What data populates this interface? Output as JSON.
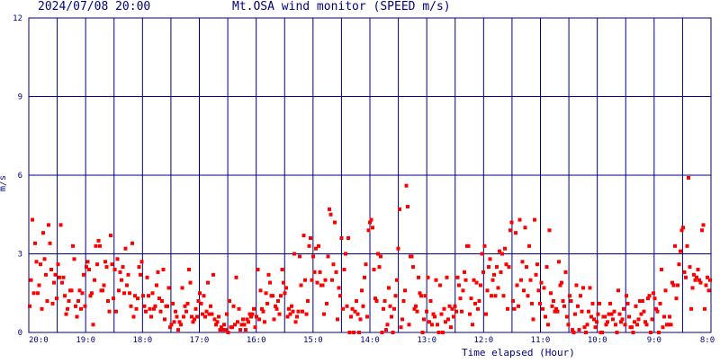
{
  "header": {
    "timestamp": "2024/07/08 20:00",
    "title": "Mt.OSA wind monitor (SPEED m/s)"
  },
  "chart_data": {
    "type": "scatter",
    "title": "Mt.OSA wind monitor (SPEED m/s)",
    "xlabel": "Time elapsed (Hour)",
    "ylabel": "m/s",
    "ylim": [
      0,
      12
    ],
    "yticks": [
      0,
      3,
      6,
      9,
      12
    ],
    "x_direction": "reversed",
    "x_tick_labels": [
      "20:0",
      "19:0",
      "18:0",
      "17:0",
      "16:0",
      "15:0",
      "14:0",
      "13:0",
      "12:0",
      "11:0",
      "10:0",
      "9:0",
      "8:0"
    ],
    "grid": true,
    "series": [
      {
        "color": "#ff0000",
        "values": [
          1.0,
          2.0,
          4.3,
          1.5,
          3.4,
          2.7,
          1.5,
          1.8,
          2.6,
          0.9,
          3.8,
          2.8,
          2.2,
          1.2,
          4.1,
          3.4,
          2.4,
          1.1,
          1.9,
          2.2,
          1.3,
          2.6,
          2.1,
          4.1,
          1.9,
          2.1,
          1.4,
          0.7,
          0.9,
          1.2,
          1.6,
          1.6,
          3.3,
          2.8,
          1.0,
          0.6,
          1.2,
          1.6,
          0.9,
          1.5,
          2.2,
          1.0,
          2.5,
          2.7,
          2.4,
          1.4,
          1.5,
          0.3,
          2.0,
          3.3,
          2.6,
          3.5,
          3.3,
          1.6,
          1.6,
          1.8,
          2.7,
          2.5,
          1.2,
          0.8,
          3.7,
          2.6,
          1.3,
          2.4,
          0.8,
          2.8,
          1.6,
          2.3,
          2.0,
          2.5,
          1.5,
          3.2,
          1.8,
          2.2,
          1.5,
          1.0,
          3.4,
          0.6,
          1.4,
          0.9,
          1.3,
          2.5,
          2.2,
          2.7,
          1.4,
          1.0,
          0.8,
          2.1,
          1.4,
          0.9,
          0.6,
          1.5,
          0.9,
          1.0,
          1.8,
          2.3,
          1.3,
          0.8,
          1.2,
          2.4,
          0.5,
          1.0,
          1.0,
          1.7,
          0.2,
          0.3,
          1.1,
          0.4,
          0.8,
          0.6,
          0.1,
          0.4,
          0.3,
          1.7,
          0.6,
          1.0,
          0.8,
          1.1,
          2.4,
          1.9,
          0.6,
          0.4,
          0.5,
          0.9,
          0.6,
          1.2,
          1.5,
          1.1,
          0.7,
          1.4,
          0.6,
          0.8,
          1.9,
          0.7,
          1.0,
          0.7,
          2.2,
          0.5,
          0.3,
          0.4,
          0.6,
          0.1,
          0.2,
          0.1,
          0.3,
          0.1,
          0.7,
          0.0,
          1.2,
          0.2,
          0.2,
          1.0,
          0.3,
          2.1,
          0.4,
          0.9,
          0.1,
          0.3,
          0.5,
          0.3,
          0.1,
          0.5,
          0.4,
          0.7,
          0.6,
          0.7,
          0.9,
          0.2,
          0.6,
          2.4,
          0.5,
          1.6,
          0.9,
          0.8,
          0.4,
          1.5,
          1.1,
          2.2,
          1.9,
          1.4,
          1.4,
          0.5,
          1.0,
          0.9,
          1.2,
          0.7,
          1.4,
          2.4,
          1.9,
          1.5,
          1.7,
          0.6,
          0.9,
          0.7,
          1.0,
          0.8,
          3.0,
          0.4,
          0.6,
          0.8,
          2.9,
          1.8,
          0.8,
          3.7,
          2.0,
          0.7,
          1.2,
          3.3,
          3.6,
          2.0,
          2.9,
          2.3,
          3.2,
          1.9,
          3.3,
          2.3,
          1.8,
          1.8,
          0.7,
          2.0,
          1.1,
          2.9,
          4.7,
          4.5,
          2.0,
          2.6,
          4.2,
          2.3,
          0.5,
          1.7,
          1.4,
          3.6,
          0.9,
          2.4,
          3.0,
          1.0,
          3.6,
          0.0,
          0.6,
          0.9,
          0.0,
          0.8,
          1.2,
          0.7,
          0.0,
          0.5,
          1.6,
          1.0,
          2.1,
          2.6,
          0.6,
          3.9,
          4.2,
          4.3,
          4.0,
          2.4,
          1.3,
          1.2,
          3.0,
          2.5,
          2.9,
          0.0,
          0.9,
          1.2,
          0.1,
          0.3,
          1.7,
          1.0,
          0.6,
          0.0,
          0.9,
          1.4,
          2.0,
          3.2,
          4.7,
          0.2,
          0.5,
          1.2,
          1.6,
          5.6,
          4.8,
          0.3,
          2.9,
          2.9,
          2.5,
          0.9,
          1.0,
          0.8,
          2.1,
          1.5,
          1.4,
          0.0,
          0.5,
          1.4,
          0.8,
          2.1,
          0.4,
          1.2,
          0.3,
          0.7,
          0.6,
          2.0,
          0.3,
          0.0,
          1.8,
          0.7,
          0.0,
          0.9,
          0.4,
          2.1,
          0.5,
          1.0,
          0.2,
          0.9,
          0.6,
          1.0,
          0.8,
          2.1,
          1.8,
          1.3,
          0.8,
          1.6,
          2.3,
          2.0,
          3.3,
          3.3,
          0.7,
          1.3,
          0.3,
          2.0,
          1.1,
          1.9,
          0.9,
          1.2,
          1.8,
          3.0,
          2.3,
          3.3,
          0.7,
          1.6,
          2.5,
          2.8,
          1.4,
          2.0,
          2.2,
          1.4,
          2.5,
          1.7,
          3.1,
          2.3,
          3.0,
          1.4,
          3.2,
          2.6,
          0.9,
          2.5,
          3.9,
          4.2,
          1.2,
          0.9,
          3.8,
          1.8,
          1.0,
          4.3,
          2.0,
          2.7,
          1.6,
          4.0,
          2.5,
          1.4,
          3.3,
          2.0,
          1.1,
          0.5,
          4.3,
          2.2,
          2.6,
          1.6,
          1.1,
          1.9,
          0.9,
          1.7,
          0.6,
          2.5,
          0.3,
          3.9,
          1.5,
          1.0,
          1.2,
          0.8,
          0.9,
          0.8,
          2.7,
          1.8,
          1.9,
          1.2,
          1.0,
          2.3,
          0.6,
          0.3,
          1.4,
          1.2,
          0.1,
          0.0,
          0.7,
          1.8,
          1.0,
          0.1,
          1.4,
          0.8,
          1.7,
          0.2,
          0.0,
          0.3,
          0.8,
          1.7,
          0.6,
          1.1,
          0.5,
          0.2,
          0.4,
          0.7,
          1.1,
          0.0,
          0.0,
          0.6,
          0.6,
          0.3,
          0.4,
          0.7,
          1.1,
          0.7,
          0.5,
          0.8,
          0.3,
          0.0,
          1.6,
          0.7,
          0.4,
          0.5,
          0.9,
          0.3,
          1.4,
          1.1,
          0.6,
          0.2,
          0.2,
          0.0,
          0.4,
          1.0,
          0.3,
          0.5,
          1.2,
          0.7,
          1.2,
          0.8,
          0.4,
          0.3,
          1.3,
          1.4,
          0.0,
          0.5,
          1.5,
          1.3,
          0.9,
          0.8,
          0.0,
          1.1,
          2.4,
          0.2,
          0.6,
          1.6,
          0.3,
          0.3,
          0.6,
          0.3,
          1.9,
          1.8,
          3.3,
          1.3,
          1.8,
          2.6,
          3.1,
          3.9,
          4.0,
          2.3,
          2.1,
          3.3,
          5.9,
          2.5,
          0.9,
          1.7,
          2.2,
          2.0,
          2.1,
          2.4,
          2.0,
          1.9,
          3.9,
          4.1,
          0.9,
          1.8,
          2.1,
          1.6,
          2.0
        ]
      }
    ]
  }
}
